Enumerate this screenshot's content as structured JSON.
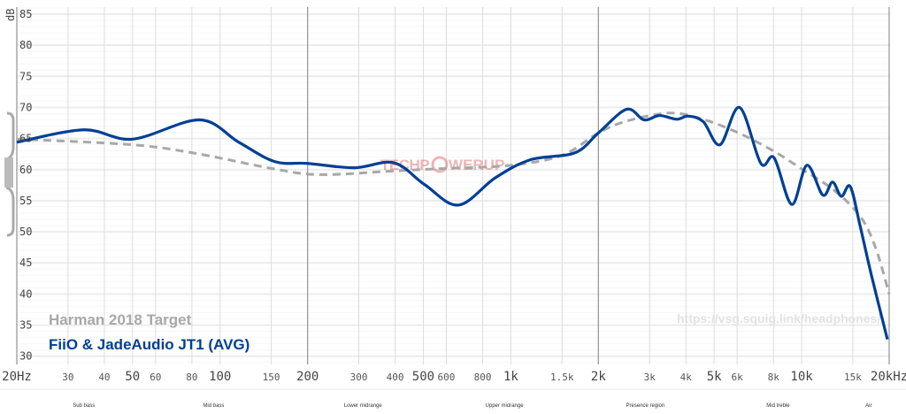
{
  "chart_data": {
    "type": "line",
    "xscale": "log",
    "xlim": [
      20,
      20000
    ],
    "ylim": [
      29,
      86
    ],
    "ylabel": "dB",
    "grid": true,
    "x_ticks": [
      {
        "f": 20,
        "label": "20Hz",
        "big": true
      },
      {
        "f": 30,
        "label": "30"
      },
      {
        "f": 40,
        "label": "40"
      },
      {
        "f": 50,
        "label": "50",
        "big": true
      },
      {
        "f": 60,
        "label": "60"
      },
      {
        "f": 80,
        "label": "80"
      },
      {
        "f": 100,
        "label": "100",
        "big": true
      },
      {
        "f": 150,
        "label": "150"
      },
      {
        "f": 200,
        "label": "200",
        "big": true
      },
      {
        "f": 300,
        "label": "300"
      },
      {
        "f": 400,
        "label": "400"
      },
      {
        "f": 500,
        "label": "500",
        "big": true
      },
      {
        "f": 600,
        "label": "600"
      },
      {
        "f": 800,
        "label": "800"
      },
      {
        "f": 1000,
        "label": "1k",
        "big": true
      },
      {
        "f": 1500,
        "label": "1.5k"
      },
      {
        "f": 2000,
        "label": "2k",
        "big": true
      },
      {
        "f": 3000,
        "label": "3k"
      },
      {
        "f": 4000,
        "label": "4k"
      },
      {
        "f": 5000,
        "label": "5k",
        "big": true
      },
      {
        "f": 6000,
        "label": "6k"
      },
      {
        "f": 8000,
        "label": "8k"
      },
      {
        "f": 10000,
        "label": "10k",
        "big": true
      },
      {
        "f": 15000,
        "label": "15k"
      },
      {
        "f": 20000,
        "label": "20kHz",
        "big": true
      }
    ],
    "y_ticks": [
      "30",
      "35",
      "40",
      "45",
      "50",
      "55",
      "60",
      "65",
      "70",
      "75",
      "80",
      "85"
    ],
    "regions": [
      {
        "label": "Sub bass",
        "f": 34
      },
      {
        "label": "Mid bass",
        "f": 95
      },
      {
        "label": "Lower midrange",
        "f": 310
      },
      {
        "label": "Upper midrange",
        "f": 950
      },
      {
        "label": "Presence region",
        "f": 2900
      },
      {
        "label": "Mid treble",
        "f": 8300
      },
      {
        "label": "Air",
        "f": 17000
      }
    ],
    "series": [
      {
        "name": "Harman 2018 Target",
        "color": "#a8a8a8",
        "dashed": true,
        "x": [
          20,
          50,
          85,
          150,
          220,
          400,
          600,
          1000,
          1500,
          2000,
          2500,
          3500,
          4500,
          6000,
          8000,
          10000,
          13000,
          16000,
          18000,
          20000
        ],
        "y": [
          64.9,
          64.0,
          62.5,
          60.2,
          59.2,
          59.8,
          60.2,
          60.7,
          62.3,
          65.9,
          67.8,
          69.1,
          68.2,
          66.0,
          63.0,
          60.1,
          56.6,
          52.3,
          47.3,
          40.0
        ]
      },
      {
        "name": "FiiO & JadeAudio JT1 (AVG)",
        "color": "#003f94",
        "dashed": false,
        "x": [
          20,
          34,
          50,
          85,
          116,
          154,
          200,
          289,
          396,
          505,
          660,
          885,
          1170,
          1660,
          2000,
          2500,
          2870,
          3240,
          3720,
          4070,
          4590,
          5240,
          6120,
          7240,
          8040,
          9250,
          10420,
          11830,
          12770,
          13690,
          14690,
          15860,
          17380,
          19720
        ],
        "y": [
          64.4,
          66.4,
          64.9,
          68.0,
          64.4,
          61.3,
          61.0,
          60.3,
          61.1,
          57.6,
          54.3,
          58.7,
          61.6,
          62.7,
          65.9,
          69.7,
          68.0,
          68.7,
          68.1,
          68.6,
          67.7,
          64.0,
          70.0,
          61.0,
          61.9,
          54.4,
          60.7,
          55.9,
          58.0,
          55.7,
          57.3,
          51.1,
          43.0,
          32.7
        ]
      }
    ]
  },
  "legend": {
    "target": "Harman 2018 Target",
    "device": "FiiO & JadeAudio JT1 (AVG)"
  },
  "watermark_url": "https://vsg.squig.link/headphones/",
  "watermark_logo": "TECHPOWERUP"
}
